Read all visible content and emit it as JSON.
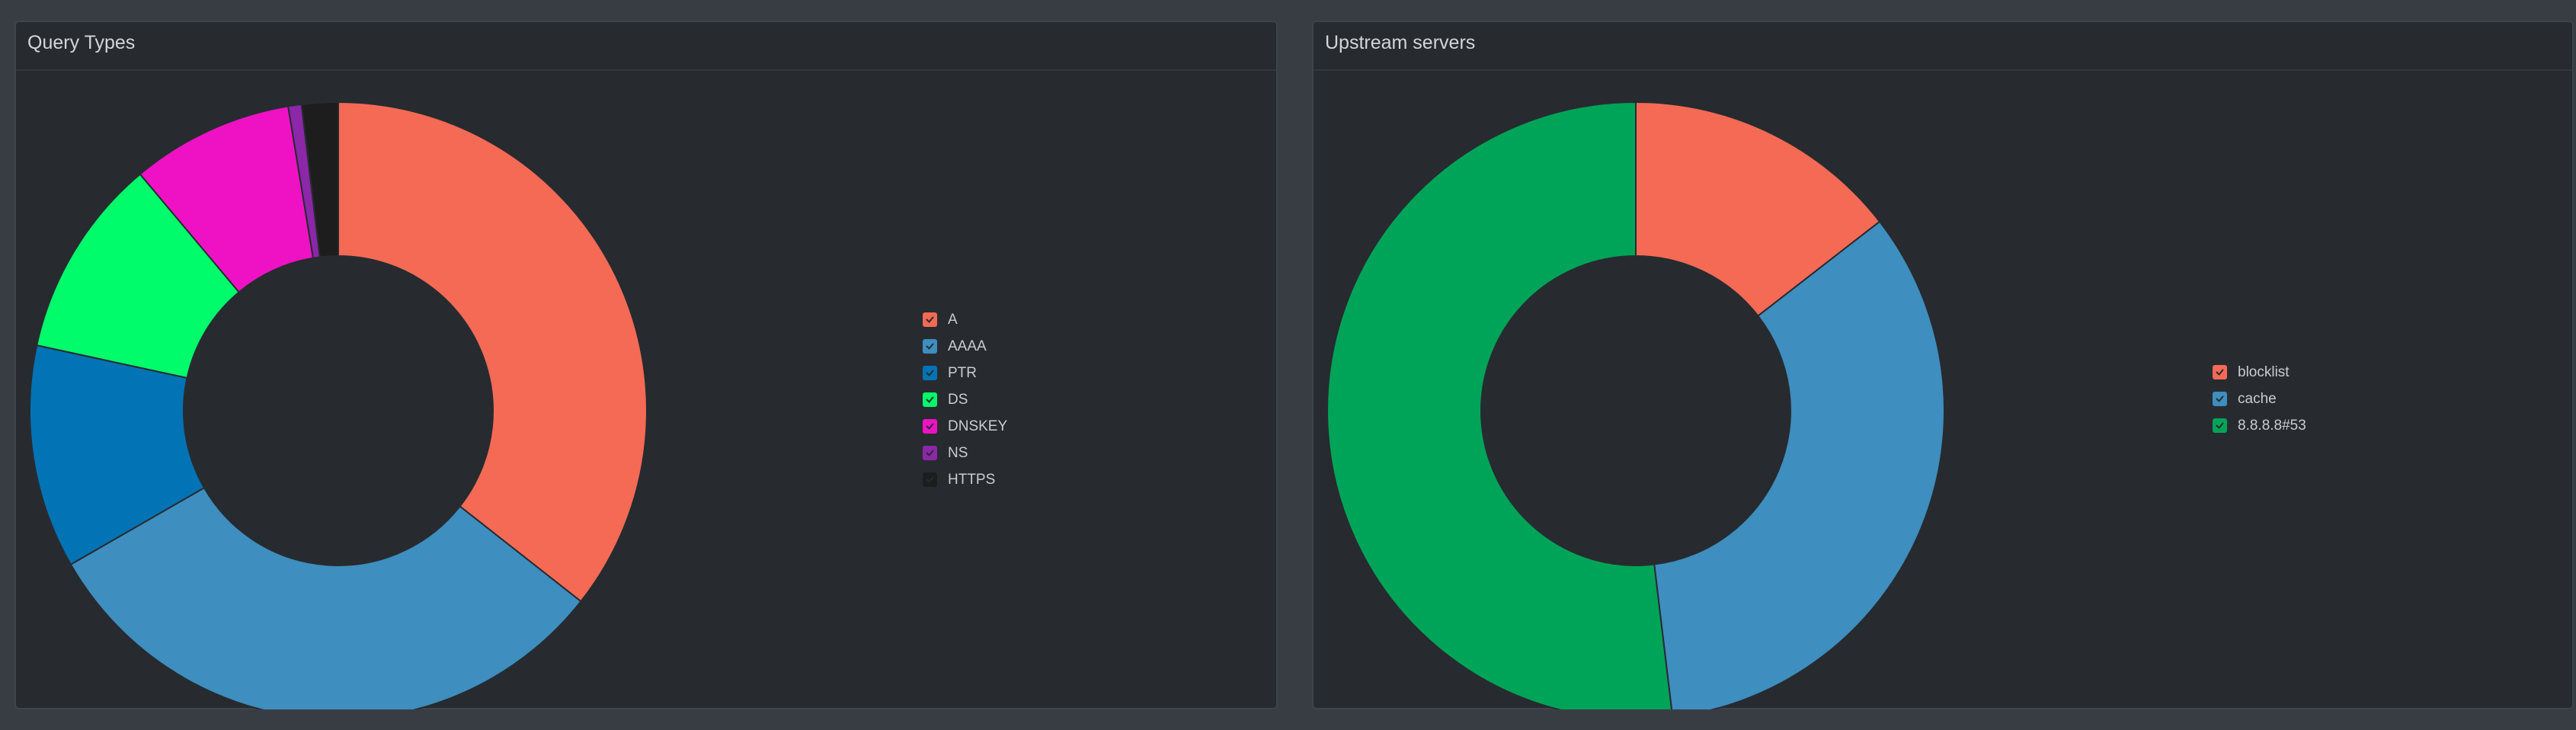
{
  "panels": [
    {
      "title": "Query Types",
      "chart_data": {
        "type": "pie",
        "variant": "doughnut",
        "legend_position": "right",
        "labels": [
          "A",
          "AAAA",
          "PTR",
          "DS",
          "DNSKEY",
          "NS",
          "HTTPS"
        ],
        "values": [
          35.6,
          31.1,
          11.7,
          10.5,
          8.5,
          0.7,
          1.9
        ],
        "colors": [
          "#f46a55",
          "#3e8ebf",
          "#0273b5",
          "#00fc6a",
          "#ef12c5",
          "#8b27a8",
          "#1d1d1d"
        ]
      }
    },
    {
      "title": "Upstream servers",
      "chart_data": {
        "type": "pie",
        "variant": "doughnut",
        "legend_position": "right",
        "labels": [
          "blocklist",
          "cache",
          "8.8.8.8#53"
        ],
        "values": [
          14.5,
          33.6,
          51.9
        ],
        "colors": [
          "#f46a55",
          "#3e8ebf",
          "#00a458"
        ]
      }
    }
  ]
}
